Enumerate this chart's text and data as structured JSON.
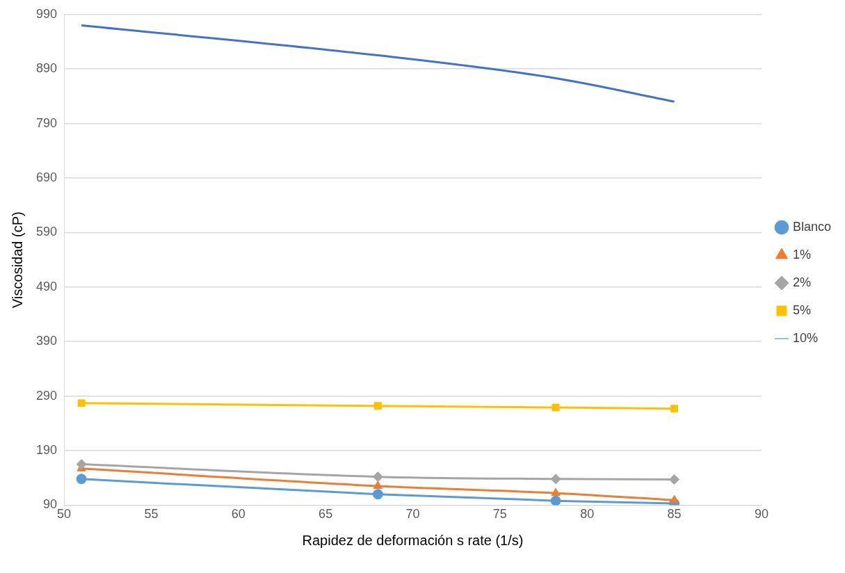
{
  "chart_data": {
    "type": "line",
    "xlabel": "Rapidez de deformación s rate (1/s)",
    "ylabel": "Viscosidad (cP)",
    "x": [
      51,
      68,
      78.2,
      85
    ],
    "series": [
      {
        "name": "Blanco",
        "color": "#5b9bd5",
        "marker": "circle",
        "values": [
          138,
          110,
          98,
          93
        ]
      },
      {
        "name": "1%",
        "color": "#ed7d31",
        "marker": "triangle",
        "values": [
          157,
          125,
          112,
          99
        ]
      },
      {
        "name": "2%",
        "color": "#a5a5a5",
        "marker": "diamond",
        "values": [
          165,
          142,
          138,
          137
        ]
      },
      {
        "name": "5%",
        "color": "#ffc000",
        "marker": "square",
        "values": [
          277,
          272,
          269,
          267
        ]
      },
      {
        "name": "10%",
        "color": "#4472c4",
        "marker": "none",
        "values": [
          970,
          915,
          873,
          830
        ]
      }
    ],
    "xlim": [
      50,
      90
    ],
    "xticks": [
      50,
      55,
      60,
      65,
      70,
      75,
      80,
      85,
      90
    ],
    "ylim": [
      90,
      990
    ],
    "yticks": [
      90,
      190,
      290,
      390,
      490,
      590,
      690,
      790,
      890,
      990
    ],
    "grid": "y",
    "legend": "right",
    "line_style": "solid"
  }
}
